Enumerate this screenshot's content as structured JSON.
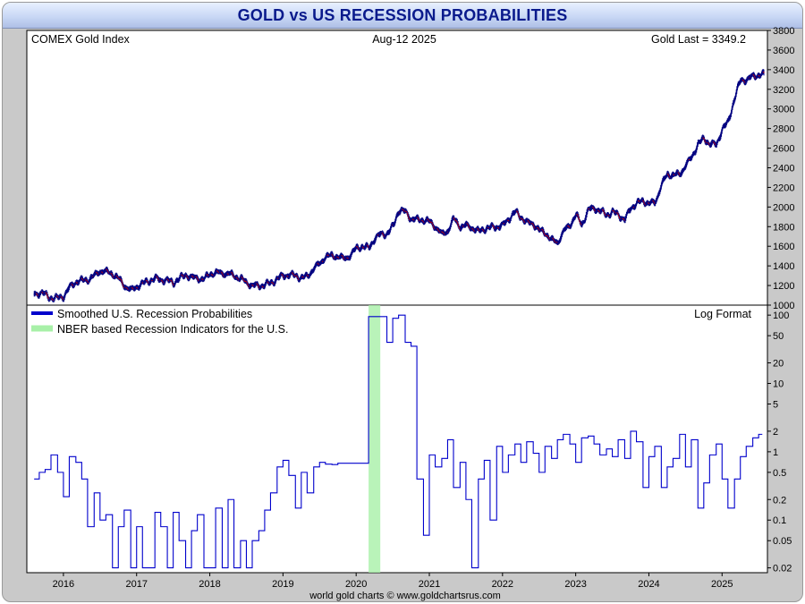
{
  "chart_data": [
    {
      "type": "candlestick",
      "title": "GOLD vs US RECESSION PROBABILITIES",
      "label_left": "COMEX Gold Index",
      "label_date": "Aug-12  2025",
      "label_last": "Gold Last = 3349.2",
      "ylim": [
        1000,
        3800
      ],
      "yticks": [
        1000,
        1200,
        1400,
        1600,
        1800,
        2000,
        2200,
        2400,
        2600,
        2800,
        3000,
        3200,
        3400,
        3600,
        3800
      ],
      "series": [
        {
          "values": [
            [
              2015.6,
              1110
            ],
            [
              2015.7,
              1130
            ],
            [
              2015.8,
              1080
            ],
            [
              2015.9,
              1070
            ],
            [
              2016.0,
              1090
            ],
            [
              2016.08,
              1180
            ],
            [
              2016.17,
              1240
            ],
            [
              2016.25,
              1250
            ],
            [
              2016.33,
              1260
            ],
            [
              2016.42,
              1300
            ],
            [
              2016.5,
              1350
            ],
            [
              2016.58,
              1340
            ],
            [
              2016.67,
              1320
            ],
            [
              2016.75,
              1270
            ],
            [
              2016.83,
              1200
            ],
            [
              2016.92,
              1150
            ],
            [
              2017.0,
              1190
            ],
            [
              2017.08,
              1220
            ],
            [
              2017.17,
              1250
            ],
            [
              2017.25,
              1270
            ],
            [
              2017.33,
              1260
            ],
            [
              2017.42,
              1250
            ],
            [
              2017.5,
              1230
            ],
            [
              2017.58,
              1270
            ],
            [
              2017.67,
              1310
            ],
            [
              2017.75,
              1280
            ],
            [
              2017.83,
              1275
            ],
            [
              2017.92,
              1265
            ],
            [
              2018.0,
              1320
            ],
            [
              2018.08,
              1330
            ],
            [
              2018.17,
              1325
            ],
            [
              2018.25,
              1320
            ],
            [
              2018.33,
              1300
            ],
            [
              2018.42,
              1270
            ],
            [
              2018.5,
              1230
            ],
            [
              2018.58,
              1200
            ],
            [
              2018.67,
              1195
            ],
            [
              2018.75,
              1210
            ],
            [
              2018.83,
              1225
            ],
            [
              2018.92,
              1270
            ],
            [
              2019.0,
              1300
            ],
            [
              2019.08,
              1310
            ],
            [
              2019.17,
              1300
            ],
            [
              2019.25,
              1280
            ],
            [
              2019.33,
              1290
            ],
            [
              2019.42,
              1380
            ],
            [
              2019.5,
              1420
            ],
            [
              2019.58,
              1500
            ],
            [
              2019.67,
              1500
            ],
            [
              2019.75,
              1500
            ],
            [
              2019.83,
              1470
            ],
            [
              2019.92,
              1510
            ],
            [
              2020.0,
              1580
            ],
            [
              2020.08,
              1600
            ],
            [
              2020.17,
              1580
            ],
            [
              2020.25,
              1680
            ],
            [
              2020.33,
              1720
            ],
            [
              2020.42,
              1730
            ],
            [
              2020.5,
              1800
            ],
            [
              2020.58,
              1970
            ],
            [
              2020.67,
              1950
            ],
            [
              2020.75,
              1880
            ],
            [
              2020.83,
              1870
            ],
            [
              2020.92,
              1870
            ],
            [
              2021.0,
              1850
            ],
            [
              2021.08,
              1800
            ],
            [
              2021.17,
              1720
            ],
            [
              2021.25,
              1760
            ],
            [
              2021.33,
              1880
            ],
            [
              2021.42,
              1800
            ],
            [
              2021.5,
              1810
            ],
            [
              2021.58,
              1790
            ],
            [
              2021.67,
              1750
            ],
            [
              2021.75,
              1780
            ],
            [
              2021.83,
              1790
            ],
            [
              2021.92,
              1800
            ],
            [
              2022.0,
              1810
            ],
            [
              2022.08,
              1880
            ],
            [
              2022.17,
              1950
            ],
            [
              2022.25,
              1900
            ],
            [
              2022.33,
              1840
            ],
            [
              2022.42,
              1830
            ],
            [
              2022.5,
              1760
            ],
            [
              2022.58,
              1740
            ],
            [
              2022.67,
              1660
            ],
            [
              2022.75,
              1640
            ],
            [
              2022.83,
              1750
            ],
            [
              2022.92,
              1820
            ],
            [
              2023.0,
              1920
            ],
            [
              2023.08,
              1820
            ],
            [
              2023.17,
              1970
            ],
            [
              2023.25,
              1990
            ],
            [
              2023.33,
              1960
            ],
            [
              2023.42,
              1920
            ],
            [
              2023.5,
              1950
            ],
            [
              2023.58,
              1920
            ],
            [
              2023.67,
              1870
            ],
            [
              2023.75,
              1990
            ],
            [
              2023.83,
              2040
            ],
            [
              2023.92,
              2060
            ],
            [
              2024.0,
              2040
            ],
            [
              2024.08,
              2040
            ],
            [
              2024.17,
              2230
            ],
            [
              2024.25,
              2330
            ],
            [
              2024.33,
              2330
            ],
            [
              2024.42,
              2330
            ],
            [
              2024.5,
              2430
            ],
            [
              2024.58,
              2500
            ],
            [
              2024.67,
              2650
            ],
            [
              2024.75,
              2690
            ],
            [
              2024.83,
              2650
            ],
            [
              2024.92,
              2630
            ],
            [
              2025.0,
              2800
            ],
            [
              2025.08,
              2860
            ],
            [
              2025.17,
              3120
            ],
            [
              2025.25,
              3290
            ],
            [
              2025.33,
              3300
            ],
            [
              2025.42,
              3330
            ],
            [
              2025.5,
              3350
            ],
            [
              2025.58,
              3349
            ]
          ]
        }
      ]
    },
    {
      "type": "line",
      "yscale": "log",
      "label_right": "Log Format",
      "yticks": [
        0.02,
        0.05,
        0.1,
        0.2,
        0.5,
        1,
        2,
        5,
        10,
        20,
        50,
        100
      ],
      "ytick_labels": [
        "0.02",
        "0.05",
        "0.1",
        "0.2",
        "0.5",
        "1",
        "2",
        "5",
        "10",
        "20",
        "50",
        "100"
      ],
      "xticks": [
        "2016",
        "2017",
        "2018",
        "2019",
        "2020",
        "2021",
        "2022",
        "2023",
        "2024",
        "2025"
      ],
      "recession": {
        "name": "NBER based Recession Indicators for the U.S.",
        "start": 2020.17,
        "end": 2020.33,
        "color": "#a8f0a8"
      },
      "series": [
        {
          "name": "Smoothed U.S. Recession Probabilities",
          "color": "#0000cc",
          "values": [
            [
              2015.6,
              0.4
            ],
            [
              2015.67,
              0.5
            ],
            [
              2015.75,
              0.55
            ],
            [
              2015.83,
              0.9
            ],
            [
              2015.92,
              0.5
            ],
            [
              2016.0,
              0.22
            ],
            [
              2016.08,
              0.85
            ],
            [
              2016.17,
              0.7
            ],
            [
              2016.25,
              0.4
            ],
            [
              2016.33,
              0.08
            ],
            [
              2016.42,
              0.25
            ],
            [
              2016.5,
              0.1
            ],
            [
              2016.58,
              0.12
            ],
            [
              2016.67,
              0.02
            ],
            [
              2016.75,
              0.08
            ],
            [
              2016.83,
              0.14
            ],
            [
              2016.92,
              0.02
            ],
            [
              2017.0,
              0.08
            ],
            [
              2017.08,
              0.02
            ],
            [
              2017.17,
              0.02
            ],
            [
              2017.25,
              0.13
            ],
            [
              2017.33,
              0.08
            ],
            [
              2017.42,
              0.02
            ],
            [
              2017.5,
              0.13
            ],
            [
              2017.58,
              0.05
            ],
            [
              2017.67,
              0.02
            ],
            [
              2017.75,
              0.07
            ],
            [
              2017.83,
              0.12
            ],
            [
              2017.92,
              0.02
            ],
            [
              2018.0,
              0.02
            ],
            [
              2018.08,
              0.15
            ],
            [
              2018.17,
              0.02
            ],
            [
              2018.25,
              0.2
            ],
            [
              2018.33,
              0.02
            ],
            [
              2018.42,
              0.05
            ],
            [
              2018.5,
              0.02
            ],
            [
              2018.58,
              0.05
            ],
            [
              2018.67,
              0.07
            ],
            [
              2018.75,
              0.14
            ],
            [
              2018.83,
              0.25
            ],
            [
              2018.92,
              0.6
            ],
            [
              2019.0,
              0.75
            ],
            [
              2019.08,
              0.45
            ],
            [
              2019.17,
              0.15
            ],
            [
              2019.25,
              0.5
            ],
            [
              2019.33,
              0.25
            ],
            [
              2019.42,
              0.6
            ],
            [
              2019.5,
              0.7
            ],
            [
              2019.58,
              0.66
            ],
            [
              2019.67,
              0.65
            ],
            [
              2019.75,
              0.68
            ],
            [
              2020.0,
              0.68
            ],
            [
              2020.17,
              95
            ],
            [
              2020.33,
              95
            ],
            [
              2020.42,
              40
            ],
            [
              2020.5,
              90
            ],
            [
              2020.58,
              100
            ],
            [
              2020.67,
              40
            ],
            [
              2020.75,
              35
            ],
            [
              2020.83,
              0.4
            ],
            [
              2020.92,
              0.06
            ],
            [
              2021.0,
              0.9
            ],
            [
              2021.08,
              0.6
            ],
            [
              2021.17,
              0.8
            ],
            [
              2021.25,
              1.5
            ],
            [
              2021.33,
              0.3
            ],
            [
              2021.42,
              0.7
            ],
            [
              2021.5,
              0.2
            ],
            [
              2021.58,
              0.02
            ],
            [
              2021.67,
              0.4
            ],
            [
              2021.75,
              0.75
            ],
            [
              2021.83,
              0.1
            ],
            [
              2021.92,
              1.2
            ],
            [
              2022.0,
              0.5
            ],
            [
              2022.08,
              0.9
            ],
            [
              2022.17,
              1.3
            ],
            [
              2022.25,
              0.7
            ],
            [
              2022.33,
              1.4
            ],
            [
              2022.42,
              0.95
            ],
            [
              2022.5,
              0.5
            ],
            [
              2022.58,
              1.2
            ],
            [
              2022.67,
              0.8
            ],
            [
              2022.75,
              1.5
            ],
            [
              2022.83,
              1.8
            ],
            [
              2022.92,
              1.3
            ],
            [
              2023.0,
              0.7
            ],
            [
              2023.08,
              1.6
            ],
            [
              2023.17,
              1.7
            ],
            [
              2023.25,
              1.3
            ],
            [
              2023.33,
              0.9
            ],
            [
              2023.42,
              1.1
            ],
            [
              2023.5,
              0.85
            ],
            [
              2023.58,
              1.5
            ],
            [
              2023.67,
              0.8
            ],
            [
              2023.75,
              2.0
            ],
            [
              2023.83,
              1.4
            ],
            [
              2023.92,
              0.3
            ],
            [
              2024.0,
              0.85
            ],
            [
              2024.08,
              1.2
            ],
            [
              2024.17,
              0.3
            ],
            [
              2024.25,
              0.6
            ],
            [
              2024.33,
              0.8
            ],
            [
              2024.42,
              1.8
            ],
            [
              2024.5,
              0.6
            ],
            [
              2024.58,
              1.5
            ],
            [
              2024.67,
              0.15
            ],
            [
              2024.75,
              0.35
            ],
            [
              2024.83,
              0.9
            ],
            [
              2024.92,
              1.3
            ],
            [
              2025.0,
              0.4
            ],
            [
              2025.08,
              0.15
            ],
            [
              2025.17,
              0.4
            ],
            [
              2025.25,
              0.85
            ],
            [
              2025.33,
              1.2
            ],
            [
              2025.42,
              1.6
            ],
            [
              2025.5,
              1.8
            ]
          ]
        }
      ]
    }
  ],
  "credit": "world gold charts © www.goldchartsrus.com"
}
